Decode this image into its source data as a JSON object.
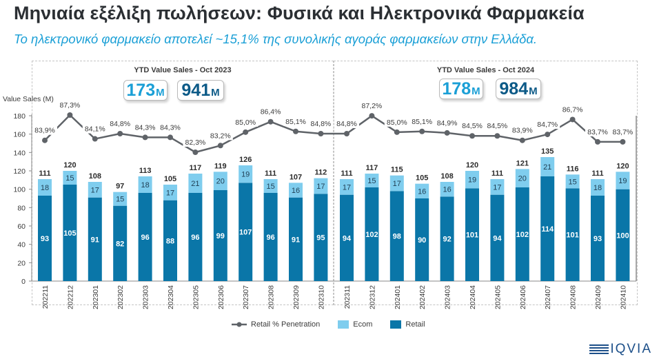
{
  "header": {
    "title": "Μηνιαία εξέλιξη πωλήσεων: Φυσικά και Ηλεκτρονικά Φαρμακεία",
    "subtitle": "Το ηλεκτρονικό φαρμακείο αποτελεί ~15,1% της συνολικής αγοράς φαρμακείων στην Ελλάδα."
  },
  "panels": [
    {
      "title": "YTD Value Sales - Oct 2023",
      "kpi_ecom": {
        "value": "173",
        "unit": "M"
      },
      "kpi_total": {
        "value": "941",
        "unit": "M"
      }
    },
    {
      "title": "YTD Value Sales - Oct 2024",
      "kpi_ecom": {
        "value": "178",
        "unit": "M"
      },
      "kpi_total": {
        "value": "984",
        "unit": "M"
      }
    }
  ],
  "legend": {
    "penetration": "Retail % Penetration",
    "ecom": "Ecom",
    "retail": "Retail"
  },
  "logo": {
    "text": "IQVIA"
  },
  "colors": {
    "retail": "#0a76a8",
    "ecom": "#7fcdee",
    "line": "#5f6368",
    "ecom_kpi": "#1a9fd6",
    "total_kpi": "#0c5a87",
    "subtitle": "#1a9fd6"
  },
  "chart_data": {
    "type": "bar",
    "stacked": true,
    "ylabel": "Value Sales (M)",
    "ylim": [
      0,
      180
    ],
    "yticks": [
      0,
      20,
      40,
      60,
      80,
      100,
      120,
      140,
      160,
      180
    ],
    "categories": [
      "202211",
      "202212",
      "202301",
      "202302",
      "202303",
      "202304",
      "202305",
      "202306",
      "202307",
      "202308",
      "202309",
      "202310",
      "202311",
      "202312",
      "202401",
      "202402",
      "202403",
      "202404",
      "202405",
      "202406",
      "202407",
      "202408",
      "202409",
      "202410"
    ],
    "series": [
      {
        "name": "Retail",
        "type": "bar",
        "values": [
          93,
          105,
          91,
          82,
          96,
          88,
          96,
          99,
          107,
          96,
          91,
          95,
          94,
          102,
          98,
          90,
          92,
          101,
          94,
          102,
          114,
          101,
          93,
          100
        ]
      },
      {
        "name": "Ecom",
        "type": "bar",
        "values": [
          18,
          15,
          17,
          15,
          18,
          17,
          21,
          20,
          19,
          15,
          16,
          17,
          17,
          15,
          17,
          16,
          16,
          19,
          17,
          20,
          21,
          15,
          18,
          19
        ]
      },
      {
        "name": "Retail % Penetration",
        "type": "line",
        "axis": "secondary",
        "values": [
          83.9,
          87.3,
          84.1,
          84.8,
          84.3,
          84.3,
          82.3,
          83.2,
          85.0,
          86.4,
          85.1,
          84.8,
          84.8,
          87.2,
          85.0,
          85.1,
          84.9,
          84.5,
          84.5,
          83.9,
          84.7,
          86.7,
          83.7,
          83.7
        ],
        "labels": [
          "83,9%",
          "87,3%",
          "84,1%",
          "84,8%",
          "84,3%",
          "84,3%",
          "82,3%",
          "83,2%",
          "85,0%",
          "86,4%",
          "85,1%",
          "84,8%",
          "84,8%",
          "87,2%",
          "85,0%",
          "85,1%",
          "84,9%",
          "84,5%",
          "84,5%",
          "83,9%",
          "84,7%",
          "86,7%",
          "83,7%",
          "83,7%"
        ]
      }
    ],
    "totals": [
      111,
      120,
      108,
      97,
      113,
      105,
      117,
      119,
      126,
      111,
      107,
      112,
      111,
      117,
      115,
      105,
      108,
      120,
      111,
      121,
      135,
      116,
      111,
      120
    ],
    "legend_position": "bottom",
    "grid": false
  }
}
